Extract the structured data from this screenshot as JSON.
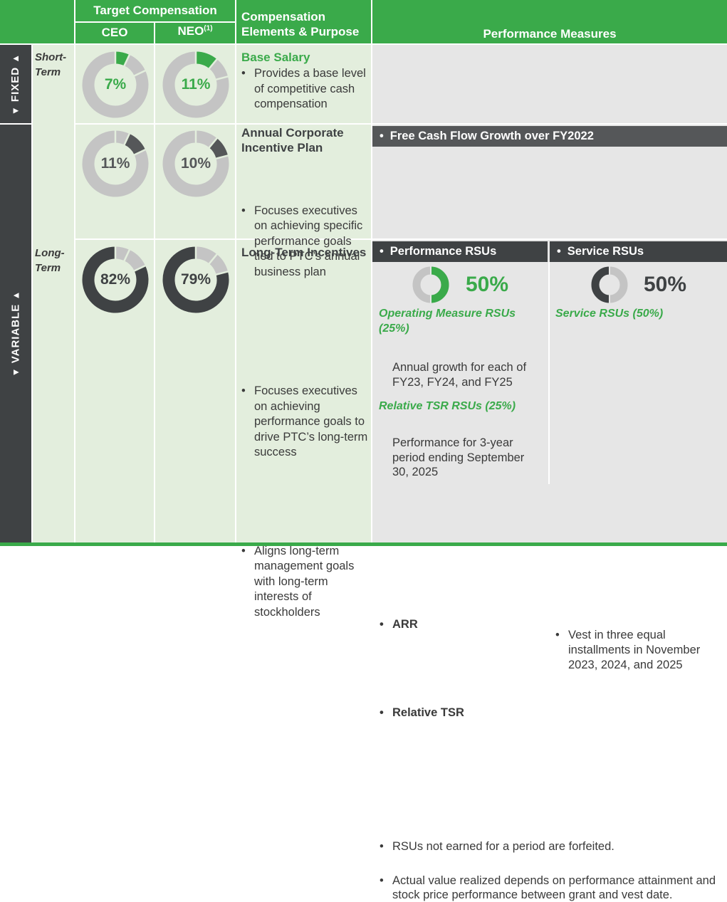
{
  "header": {
    "target_comp": "Target Compensation",
    "ceo": "CEO",
    "neo": "NEO",
    "neo_sup": "(1)",
    "elements_line1": "Compensation",
    "elements_line2": "Elements & Purpose",
    "performance": "Performance Measures"
  },
  "side": {
    "fixed": "FIXED",
    "variable": "VARIABLE",
    "up_arrow": "▲",
    "down_arrow": "▼"
  },
  "terms": {
    "short": "Short-Term",
    "short_line1": "Short-",
    "short_line2": "Term",
    "long_line1": "Long-",
    "long_line2": "Term"
  },
  "donuts": {
    "base_ceo": "7%",
    "base_neo": "11%",
    "acip_ceo": "11%",
    "acip_neo": "10%",
    "lti_ceo": "82%",
    "lti_neo": "79%"
  },
  "chart_data": {
    "type": "pie",
    "title": "Target Compensation",
    "categories": [
      "Base Salary",
      "Annual Corporate Incentive Plan",
      "Long-Term Incentives"
    ],
    "series": [
      {
        "name": "CEO",
        "values": [
          7,
          11,
          82
        ]
      },
      {
        "name": "NEO",
        "values": [
          11,
          10,
          79
        ]
      }
    ],
    "colors": {
      "base": "#3aaa4a",
      "acip": "#555759",
      "lti": "#3f4244",
      "rest": "#c4c4c4"
    }
  },
  "elements": {
    "base_title": "Base Salary",
    "base_bullet": "Provides a base level of competitive cash compensation",
    "acip_title_line1": "Annual Corporate",
    "acip_title_line2": "Incentive Plan",
    "acip_bullet": "Focuses executives on achieving specific performance goals tied to PTC’s annual business plan",
    "lti_title": "Long-Term Incentives",
    "lti_bullet1": "Focuses executives on achieving performance goals to drive PTC’s long-term success",
    "lti_bullet2": "Aligns long-term management goals with long-term interests of stockholders"
  },
  "performance": {
    "acip_measure": "Free Cash Flow Growth over FY2022",
    "prsu_label": "Performance RSUs",
    "srsu_label": "Service RSUs",
    "prsu_pct": "50%",
    "srsu_pct": "50%",
    "op_rsu_title": "Operating Measure RSUs (25%)",
    "arr": "ARR",
    "arr_desc": "Annual growth for each of FY23, FY24, and FY25",
    "rtsr_title": "Relative TSR RSUs (25%)",
    "rtsr": "Relative TSR",
    "rtsr_desc": "Performance for 3-year period ending September 30, 2025",
    "service_title": "Service RSUs (50%)",
    "service_bullet": "Vest in three equal installments in November 2023, 2024, and 2025",
    "note1": "RSUs not earned for a period are forfeited.",
    "note2": "Actual value realized depends on performance attainment and stock price performance between grant and vest date."
  }
}
